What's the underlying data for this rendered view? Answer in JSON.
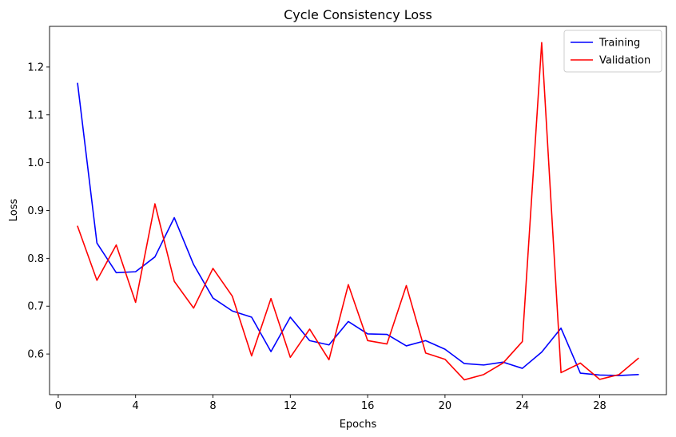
{
  "chart_data": {
    "type": "line",
    "title": "Cycle Consistency Loss",
    "xlabel": "Epochs",
    "ylabel": "Loss",
    "xlim": [
      -0.45,
      31.45
    ],
    "ylim": [
      0.515,
      1.285
    ],
    "x_ticks": [
      0,
      4,
      8,
      12,
      16,
      20,
      24,
      28
    ],
    "y_ticks": [
      0.6,
      0.7,
      0.8,
      0.9,
      1.0,
      1.1,
      1.2
    ],
    "y_tick_labels": [
      "0.6",
      "0.7",
      "0.8",
      "0.9",
      "1.0",
      "1.1",
      "1.2"
    ],
    "grid": false,
    "legend_position": "top-right",
    "x": [
      1,
      2,
      3,
      4,
      5,
      6,
      7,
      8,
      9,
      10,
      11,
      12,
      13,
      14,
      15,
      16,
      17,
      18,
      19,
      20,
      21,
      22,
      23,
      24,
      25,
      26,
      27,
      28,
      29,
      30
    ],
    "series": [
      {
        "name": "Training",
        "color": "#0000ff",
        "values": [
          1.166,
          0.832,
          0.77,
          0.772,
          0.803,
          0.885,
          0.787,
          0.717,
          0.69,
          0.677,
          0.605,
          0.677,
          0.628,
          0.619,
          0.668,
          0.642,
          0.641,
          0.617,
          0.628,
          0.61,
          0.58,
          0.577,
          0.583,
          0.57,
          0.604,
          0.654,
          0.56,
          0.556,
          0.555,
          0.557
        ]
      },
      {
        "name": "Validation",
        "color": "#ff0000",
        "values": [
          0.867,
          0.754,
          0.828,
          0.708,
          0.914,
          0.752,
          0.696,
          0.779,
          0.721,
          0.596,
          0.716,
          0.593,
          0.652,
          0.588,
          0.745,
          0.628,
          0.621,
          0.743,
          0.602,
          0.589,
          0.546,
          0.557,
          0.581,
          0.626,
          1.251,
          0.561,
          0.581,
          0.547,
          0.557,
          0.591
        ]
      }
    ]
  }
}
